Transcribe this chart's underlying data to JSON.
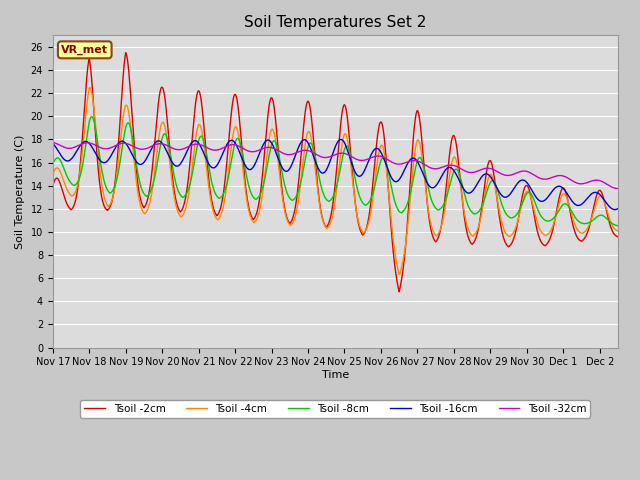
{
  "title": "Soil Temperatures Set 2",
  "xlabel": "Time",
  "ylabel": "Soil Temperature (C)",
  "ylim": [
    0,
    27
  ],
  "xlim_days": [
    0,
    15.5
  ],
  "annotation": "VR_met",
  "fig_bg": "#c8c8c8",
  "plot_bg": "#dcdcdc",
  "legend": [
    "Tsoil -2cm",
    "Tsoil -4cm",
    "Tsoil -8cm",
    "Tsoil -16cm",
    "Tsoil -32cm"
  ],
  "colors": [
    "#dd0000",
    "#ff8800",
    "#00cc00",
    "#0000dd",
    "#cc00cc"
  ],
  "xtick_labels": [
    "Nov 17",
    "Nov 18",
    "Nov 19",
    "Nov 20",
    "Nov 21",
    "Nov 22",
    "Nov 23",
    "Nov 24",
    "Nov 25",
    "Nov 26",
    "Nov 27",
    "Nov 28",
    "Nov 29",
    "Nov 30",
    "Dec 1",
    "Dec 2"
  ],
  "xtick_positions": [
    0,
    1,
    2,
    3,
    4,
    5,
    6,
    7,
    8,
    9,
    10,
    11,
    12,
    13,
    14,
    15
  ]
}
